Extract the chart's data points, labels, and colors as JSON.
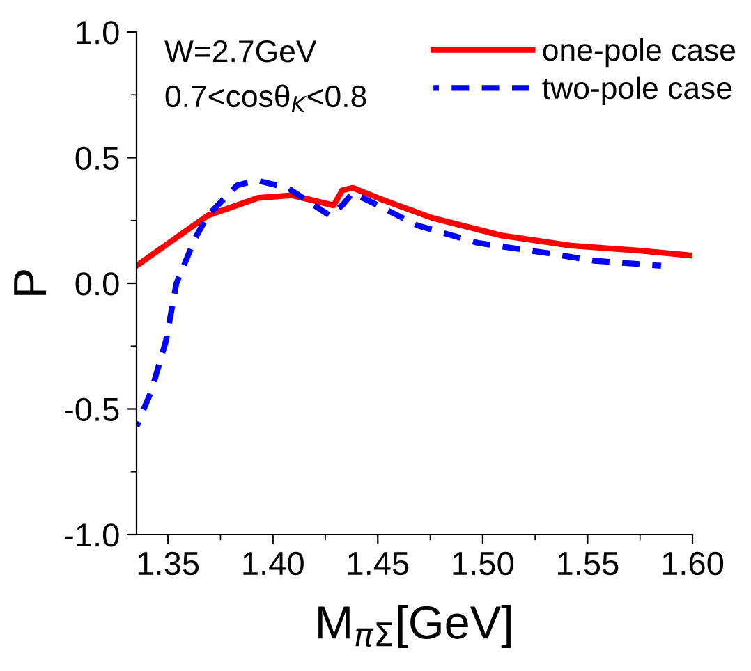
{
  "chart_data": {
    "type": "line",
    "xlabel": "M$_{πΣ}$[GeV]",
    "ylabel": "P",
    "annotations": [
      "W=2.7GeV",
      "0.7<cosθ$_{K}$<0.8"
    ],
    "xlim": [
      1.335,
      1.6
    ],
    "xticks": [
      {
        "value": 1.35,
        "label": "1.35"
      },
      {
        "value": 1.4,
        "label": "1.40"
      },
      {
        "value": 1.45,
        "label": "1.45"
      },
      {
        "value": 1.5,
        "label": "1.50"
      },
      {
        "value": 1.55,
        "label": "1.55"
      },
      {
        "value": 1.6,
        "label": "1.60"
      }
    ],
    "ylim": [
      -1.0,
      1.0
    ],
    "yticks": [
      {
        "value": -1.0,
        "label": "-1.0"
      },
      {
        "value": -0.5,
        "label": "-0.5"
      },
      {
        "value": 0.0,
        "label": "0.0"
      },
      {
        "value": 0.5,
        "label": "0.5"
      },
      {
        "value": 1.0,
        "label": "1.0"
      }
    ],
    "grid": false,
    "legend": "top right",
    "series": [
      {
        "name": "one-pole case",
        "color": "#ff0000",
        "line_style": "solid",
        "x": [
          1.335,
          1.369,
          1.393,
          1.409,
          1.429,
          1.433,
          1.438,
          1.453,
          1.476,
          1.509,
          1.542,
          1.575,
          1.6
        ],
        "values": [
          0.07,
          0.27,
          0.34,
          0.35,
          0.31,
          0.37,
          0.38,
          0.33,
          0.26,
          0.19,
          0.15,
          0.13,
          0.11
        ]
      },
      {
        "name": "two-pole case",
        "color": "#0000ff",
        "line_style": "dashed",
        "x": [
          1.335,
          1.342,
          1.349,
          1.354,
          1.363,
          1.369,
          1.383,
          1.392,
          1.407,
          1.427,
          1.433,
          1.438,
          1.45,
          1.469,
          1.498,
          1.531,
          1.553,
          1.585
        ],
        "values": [
          -0.57,
          -0.43,
          -0.23,
          0.0,
          0.18,
          0.27,
          0.39,
          0.41,
          0.38,
          0.27,
          0.31,
          0.36,
          0.31,
          0.23,
          0.16,
          0.12,
          0.09,
          0.07
        ]
      }
    ]
  }
}
